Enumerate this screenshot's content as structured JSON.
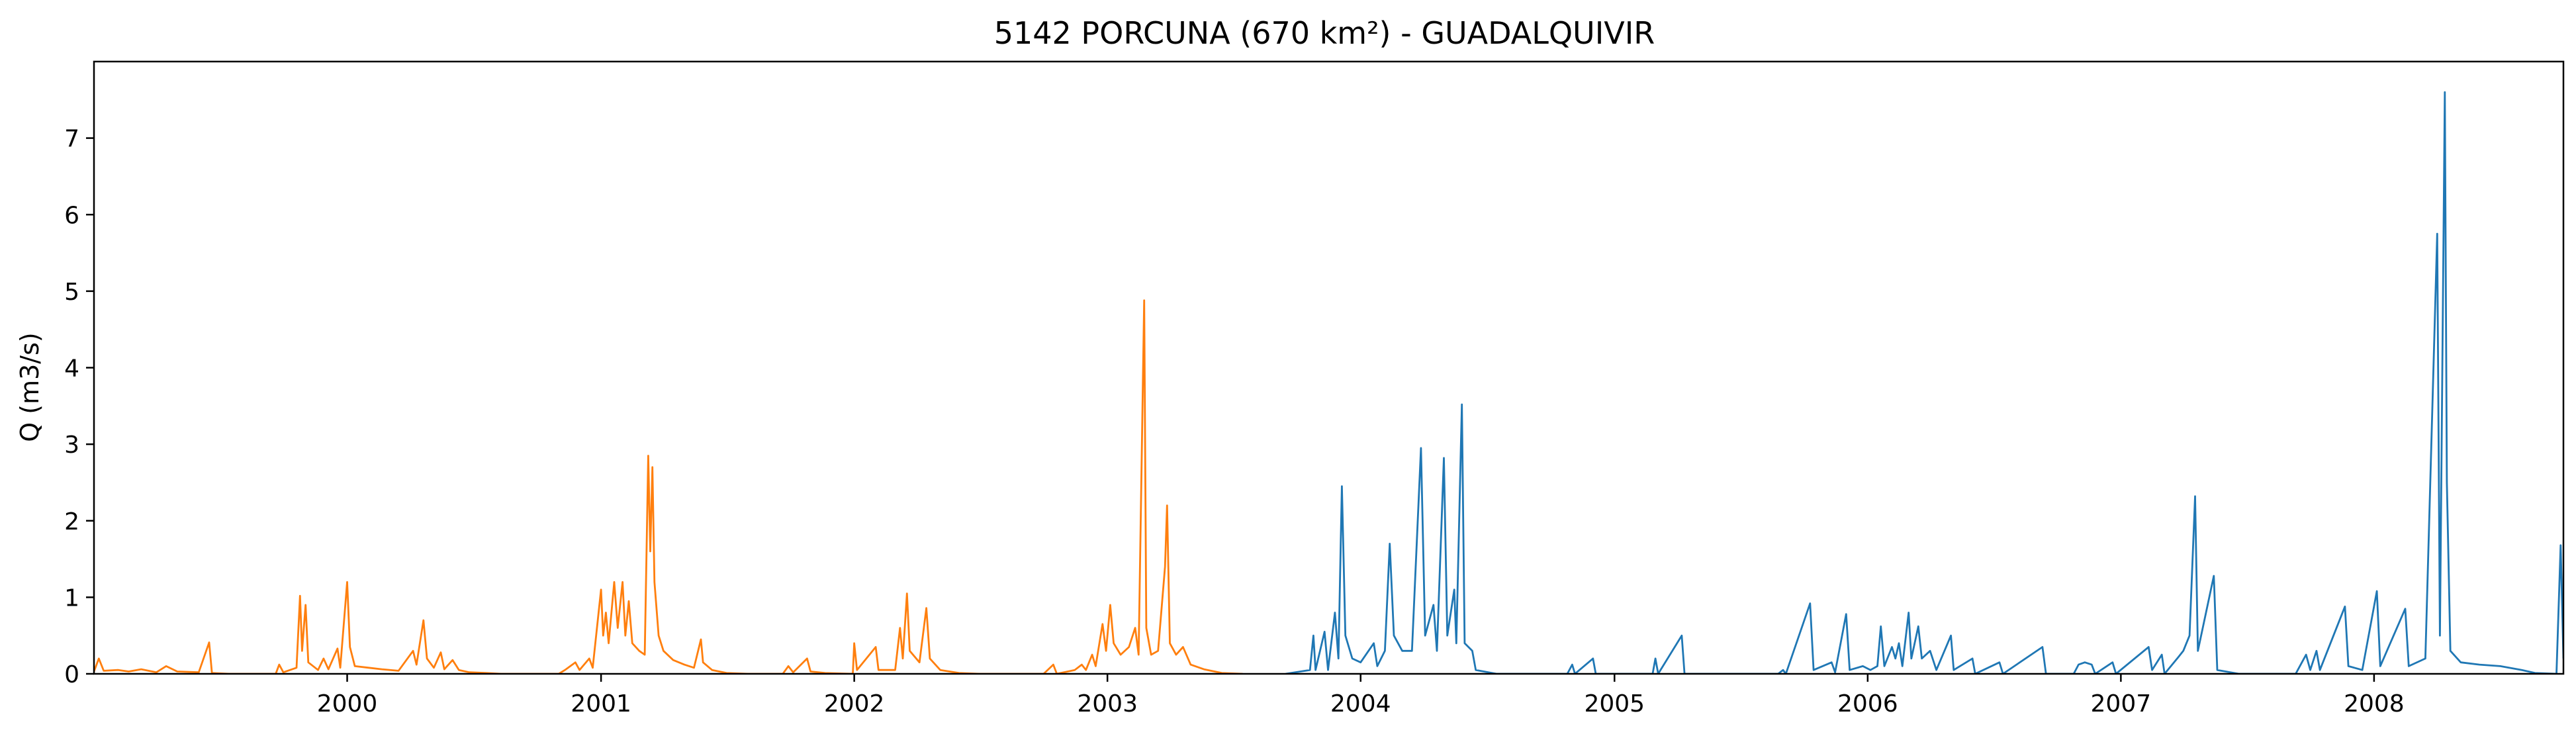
{
  "chart_data": {
    "type": "line",
    "title": "5142 PORCUNA (670 km²) - GUADALQUIVIR",
    "xlabel": "",
    "ylabel": "Q (m3/s)",
    "x_type": "date",
    "xlim": [
      "1999-01-01",
      "2008-09-30"
    ],
    "ylim": [
      0,
      8
    ],
    "x_tick_labels": [
      "2000",
      "2001",
      "2002",
      "2003",
      "2004",
      "2005",
      "2006",
      "2007",
      "2008"
    ],
    "x_tick_dates": [
      "2000-01-01",
      "2001-01-01",
      "2002-01-01",
      "2003-01-01",
      "2004-01-01",
      "2005-01-01",
      "2006-01-01",
      "2007-01-01",
      "2008-01-01"
    ],
    "y_ticks": [
      0,
      1,
      2,
      3,
      4,
      5,
      6,
      7
    ],
    "grid": false,
    "legend": "none",
    "series": [
      {
        "color": "#ff7f0e",
        "points": [
          [
            "1999-01-01",
            0.03
          ],
          [
            "1999-01-08",
            0.2
          ],
          [
            "1999-01-15",
            0.04
          ],
          [
            "1999-02-05",
            0.05
          ],
          [
            "1999-02-20",
            0.03
          ],
          [
            "1999-03-10",
            0.06
          ],
          [
            "1999-04-01",
            0.02
          ],
          [
            "1999-04-15",
            0.1
          ],
          [
            "1999-05-01",
            0.03
          ],
          [
            "1999-06-01",
            0.02
          ],
          [
            "1999-06-16",
            0.41
          ],
          [
            "1999-06-20",
            0.01
          ],
          [
            "1999-07-15",
            0.0
          ],
          [
            "1999-09-20",
            0.0
          ],
          [
            "1999-09-25",
            0.12
          ],
          [
            "1999-10-01",
            0.02
          ],
          [
            "1999-10-20",
            0.08
          ],
          [
            "1999-10-25",
            1.02
          ],
          [
            "1999-10-28",
            0.3
          ],
          [
            "1999-11-02",
            0.9
          ],
          [
            "1999-11-06",
            0.15
          ],
          [
            "1999-11-20",
            0.05
          ],
          [
            "1999-11-28",
            0.2
          ],
          [
            "1999-12-05",
            0.06
          ],
          [
            "1999-12-18",
            0.33
          ],
          [
            "1999-12-22",
            0.08
          ],
          [
            "2000-01-01",
            1.2
          ],
          [
            "2000-01-05",
            0.35
          ],
          [
            "2000-01-12",
            0.1
          ],
          [
            "2000-02-01",
            0.08
          ],
          [
            "2000-02-20",
            0.06
          ],
          [
            "2000-03-15",
            0.04
          ],
          [
            "2000-04-05",
            0.3
          ],
          [
            "2000-04-10",
            0.12
          ],
          [
            "2000-04-20",
            0.7
          ],
          [
            "2000-04-25",
            0.2
          ],
          [
            "2000-05-05",
            0.08
          ],
          [
            "2000-05-15",
            0.28
          ],
          [
            "2000-05-20",
            0.06
          ],
          [
            "2000-06-01",
            0.18
          ],
          [
            "2000-06-10",
            0.05
          ],
          [
            "2000-06-25",
            0.02
          ],
          [
            "2000-07-20",
            0.01
          ],
          [
            "2000-08-10",
            0.0
          ],
          [
            "2000-11-01",
            0.0
          ],
          [
            "2000-11-10",
            0.05
          ],
          [
            "2000-11-25",
            0.15
          ],
          [
            "2000-12-01",
            0.05
          ],
          [
            "2000-12-15",
            0.2
          ],
          [
            "2000-12-20",
            0.08
          ],
          [
            "2001-01-01",
            1.1
          ],
          [
            "2001-01-04",
            0.5
          ],
          [
            "2001-01-08",
            0.8
          ],
          [
            "2001-01-12",
            0.4
          ],
          [
            "2001-01-20",
            1.2
          ],
          [
            "2001-01-25",
            0.6
          ],
          [
            "2001-02-01",
            1.2
          ],
          [
            "2001-02-05",
            0.5
          ],
          [
            "2001-02-10",
            0.95
          ],
          [
            "2001-02-15",
            0.4
          ],
          [
            "2001-02-25",
            0.3
          ],
          [
            "2001-03-05",
            0.25
          ],
          [
            "2001-03-10",
            2.85
          ],
          [
            "2001-03-13",
            1.6
          ],
          [
            "2001-03-16",
            2.7
          ],
          [
            "2001-03-19",
            1.2
          ],
          [
            "2001-03-25",
            0.5
          ],
          [
            "2001-04-01",
            0.3
          ],
          [
            "2001-04-15",
            0.18
          ],
          [
            "2001-05-01",
            0.12
          ],
          [
            "2001-05-15",
            0.08
          ],
          [
            "2001-05-25",
            0.45
          ],
          [
            "2001-05-28",
            0.15
          ],
          [
            "2001-06-10",
            0.05
          ],
          [
            "2001-07-01",
            0.01
          ],
          [
            "2001-08-01",
            0.0
          ],
          [
            "2001-09-20",
            0.0
          ],
          [
            "2001-09-28",
            0.1
          ],
          [
            "2001-10-05",
            0.02
          ],
          [
            "2001-10-25",
            0.2
          ],
          [
            "2001-10-30",
            0.03
          ],
          [
            "2001-11-20",
            0.01
          ],
          [
            "2001-12-30",
            0.0
          ],
          [
            "2002-01-01",
            0.4
          ],
          [
            "2002-01-05",
            0.05
          ],
          [
            "2002-02-01",
            0.35
          ],
          [
            "2002-02-05",
            0.05
          ],
          [
            "2002-03-01",
            0.05
          ],
          [
            "2002-03-08",
            0.6
          ],
          [
            "2002-03-12",
            0.2
          ],
          [
            "2002-03-18",
            1.05
          ],
          [
            "2002-03-22",
            0.3
          ],
          [
            "2002-04-05",
            0.15
          ],
          [
            "2002-04-15",
            0.86
          ],
          [
            "2002-04-20",
            0.2
          ],
          [
            "2002-05-05",
            0.05
          ],
          [
            "2002-06-01",
            0.01
          ],
          [
            "2002-07-01",
            0.0
          ],
          [
            "2002-10-01",
            0.0
          ],
          [
            "2002-10-15",
            0.12
          ],
          [
            "2002-10-20",
            0.0
          ],
          [
            "2002-11-15",
            0.05
          ],
          [
            "2002-11-25",
            0.12
          ],
          [
            "2002-12-01",
            0.05
          ],
          [
            "2002-12-10",
            0.25
          ],
          [
            "2002-12-15",
            0.1
          ],
          [
            "2002-12-25",
            0.65
          ],
          [
            "2002-12-30",
            0.3
          ],
          [
            "2003-01-05",
            0.9
          ],
          [
            "2003-01-10",
            0.4
          ],
          [
            "2003-01-20",
            0.25
          ],
          [
            "2003-02-01",
            0.35
          ],
          [
            "2003-02-10",
            0.6
          ],
          [
            "2003-02-15",
            0.25
          ],
          [
            "2003-02-23",
            4.88
          ],
          [
            "2003-02-26",
            0.6
          ],
          [
            "2003-03-05",
            0.25
          ],
          [
            "2003-03-15",
            0.3
          ],
          [
            "2003-03-25",
            1.4
          ],
          [
            "2003-03-28",
            2.2
          ],
          [
            "2003-04-01",
            0.4
          ],
          [
            "2003-04-10",
            0.25
          ],
          [
            "2003-04-20",
            0.35
          ],
          [
            "2003-05-01",
            0.12
          ],
          [
            "2003-05-20",
            0.06
          ],
          [
            "2003-06-15",
            0.01
          ],
          [
            "2003-07-15",
            0.0
          ]
        ]
      },
      {
        "color": "#1f77b4",
        "points": [
          [
            "2003-09-15",
            0.0
          ],
          [
            "2003-10-20",
            0.05
          ],
          [
            "2003-10-25",
            0.5
          ],
          [
            "2003-10-28",
            0.05
          ],
          [
            "2003-11-10",
            0.55
          ],
          [
            "2003-11-15",
            0.05
          ],
          [
            "2003-11-25",
            0.8
          ],
          [
            "2003-11-30",
            0.2
          ],
          [
            "2003-12-05",
            2.45
          ],
          [
            "2003-12-10",
            0.5
          ],
          [
            "2003-12-20",
            0.2
          ],
          [
            "2004-01-01",
            0.15
          ],
          [
            "2004-01-20",
            0.4
          ],
          [
            "2004-01-25",
            0.1
          ],
          [
            "2004-02-05",
            0.3
          ],
          [
            "2004-02-12",
            1.7
          ],
          [
            "2004-02-18",
            0.5
          ],
          [
            "2004-03-01",
            0.3
          ],
          [
            "2004-03-15",
            0.3
          ],
          [
            "2004-03-28",
            2.95
          ],
          [
            "2004-04-03",
            0.5
          ],
          [
            "2004-04-15",
            0.9
          ],
          [
            "2004-04-20",
            0.3
          ],
          [
            "2004-04-30",
            2.82
          ],
          [
            "2004-05-05",
            0.5
          ],
          [
            "2004-05-15",
            1.1
          ],
          [
            "2004-05-18",
            0.4
          ],
          [
            "2004-05-26",
            3.52
          ],
          [
            "2004-05-30",
            0.4
          ],
          [
            "2004-06-10",
            0.3
          ],
          [
            "2004-06-15",
            0.05
          ],
          [
            "2004-07-15",
            0.0
          ],
          [
            "2004-10-25",
            0.0
          ],
          [
            "2004-11-01",
            0.12
          ],
          [
            "2004-11-05",
            0.0
          ],
          [
            "2004-12-01",
            0.2
          ],
          [
            "2004-12-05",
            0.0
          ],
          [
            "2005-02-25",
            0.0
          ],
          [
            "2005-03-01",
            0.2
          ],
          [
            "2005-03-05",
            0.0
          ],
          [
            "2005-04-08",
            0.5
          ],
          [
            "2005-04-12",
            0.0
          ],
          [
            "2005-08-25",
            0.0
          ],
          [
            "2005-09-01",
            0.05
          ],
          [
            "2005-09-05",
            0.0
          ],
          [
            "2005-10-10",
            0.92
          ],
          [
            "2005-10-15",
            0.05
          ],
          [
            "2005-11-10",
            0.15
          ],
          [
            "2005-11-15",
            0.02
          ],
          [
            "2005-12-01",
            0.78
          ],
          [
            "2005-12-06",
            0.05
          ],
          [
            "2005-12-25",
            0.1
          ],
          [
            "2006-01-05",
            0.05
          ],
          [
            "2006-01-15",
            0.1
          ],
          [
            "2006-01-20",
            0.62
          ],
          [
            "2006-01-25",
            0.1
          ],
          [
            "2006-02-05",
            0.35
          ],
          [
            "2006-02-10",
            0.2
          ],
          [
            "2006-02-15",
            0.4
          ],
          [
            "2006-02-20",
            0.1
          ],
          [
            "2006-03-01",
            0.8
          ],
          [
            "2006-03-05",
            0.2
          ],
          [
            "2006-03-15",
            0.62
          ],
          [
            "2006-03-20",
            0.2
          ],
          [
            "2006-04-01",
            0.3
          ],
          [
            "2006-04-10",
            0.05
          ],
          [
            "2006-05-01",
            0.5
          ],
          [
            "2006-05-05",
            0.05
          ],
          [
            "2006-06-01",
            0.2
          ],
          [
            "2006-06-05",
            0.0
          ],
          [
            "2006-07-10",
            0.15
          ],
          [
            "2006-07-15",
            0.0
          ],
          [
            "2006-09-10",
            0.35
          ],
          [
            "2006-09-15",
            0.0
          ],
          [
            "2006-10-25",
            0.0
          ],
          [
            "2006-11-01",
            0.12
          ],
          [
            "2006-11-10",
            0.15
          ],
          [
            "2006-11-20",
            0.12
          ],
          [
            "2006-11-25",
            0.0
          ],
          [
            "2006-12-20",
            0.15
          ],
          [
            "2006-12-25",
            0.0
          ],
          [
            "2007-02-10",
            0.35
          ],
          [
            "2007-02-15",
            0.05
          ],
          [
            "2007-03-01",
            0.25
          ],
          [
            "2007-03-05",
            0.0
          ],
          [
            "2007-03-25",
            0.22
          ],
          [
            "2007-04-01",
            0.3
          ],
          [
            "2007-04-10",
            0.5
          ],
          [
            "2007-04-18",
            2.32
          ],
          [
            "2007-04-22",
            0.3
          ],
          [
            "2007-05-15",
            1.28
          ],
          [
            "2007-05-20",
            0.05
          ],
          [
            "2007-06-20",
            0.0
          ],
          [
            "2007-09-10",
            0.0
          ],
          [
            "2007-09-25",
            0.25
          ],
          [
            "2007-10-01",
            0.05
          ],
          [
            "2007-10-10",
            0.3
          ],
          [
            "2007-10-15",
            0.05
          ],
          [
            "2007-11-20",
            0.88
          ],
          [
            "2007-11-25",
            0.1
          ],
          [
            "2007-12-15",
            0.05
          ],
          [
            "2008-01-05",
            1.08
          ],
          [
            "2008-01-10",
            0.1
          ],
          [
            "2008-02-15",
            0.85
          ],
          [
            "2008-02-20",
            0.1
          ],
          [
            "2008-03-15",
            0.2
          ],
          [
            "2008-04-01",
            5.75
          ],
          [
            "2008-04-05",
            0.5
          ],
          [
            "2008-04-12",
            7.6
          ],
          [
            "2008-04-15",
            2.5
          ],
          [
            "2008-04-20",
            0.3
          ],
          [
            "2008-05-05",
            0.15
          ],
          [
            "2008-06-01",
            0.12
          ],
          [
            "2008-07-01",
            0.1
          ],
          [
            "2008-08-01",
            0.05
          ],
          [
            "2008-08-20",
            0.01
          ],
          [
            "2008-09-20",
            0.0
          ],
          [
            "2008-09-26",
            1.68
          ],
          [
            "2008-09-30",
            0.2
          ]
        ]
      }
    ]
  }
}
